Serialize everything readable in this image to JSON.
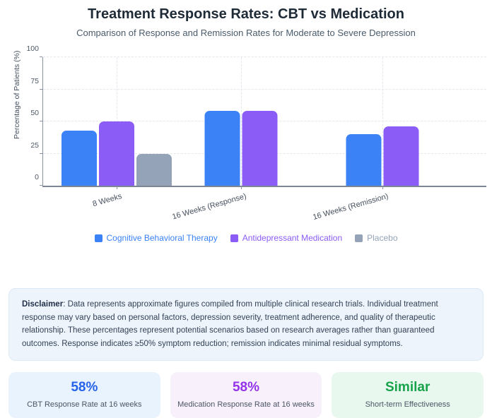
{
  "header": {
    "title": "Treatment Response Rates: CBT vs Medication",
    "subtitle": "Comparison of Response and Remission Rates for Moderate to Severe Depression"
  },
  "chart_data": {
    "type": "bar",
    "title": "Treatment Response Rates: CBT vs Medication",
    "categories": [
      "8 Weeks",
      "16 Weeks (Response)",
      "16 Weeks (Remission)"
    ],
    "series": [
      {
        "name": "Cognitive Behavioral Therapy",
        "color": "#3b82f6",
        "values": [
          43,
          58,
          40
        ]
      },
      {
        "name": "Antidepressant Medication",
        "color": "#8b5cf6",
        "values": [
          50,
          58,
          46
        ]
      },
      {
        "name": "Placebo",
        "color": "#94a3b8",
        "values": [
          25,
          null,
          null
        ]
      }
    ],
    "xlabel": "",
    "ylabel": "Percentage of Patients (%)",
    "yticks": [
      0,
      25,
      50,
      75,
      100
    ],
    "ylim": [
      0,
      100
    ],
    "grid": true,
    "legend_position": "bottom"
  },
  "disclaimer": {
    "label": "Disclaimer",
    "text": ": Data represents approximate figures compiled from multiple clinical research trials. Individual treatment response may vary based on personal factors, depression severity, treatment adherence, and quality of therapeutic relationship. These percentages represent potential scenarios based on research averages rather than guaranteed outcomes. Response indicates ≥50% symptom reduction; remission indicates minimal residual symptoms."
  },
  "stats": [
    {
      "value": "58%",
      "label": "CBT Response Rate at 16 weeks",
      "color": "#2563eb",
      "bg": "#e9f3fe"
    },
    {
      "value": "58%",
      "label": "Medication Response Rate at 16 weeks",
      "color": "#9333ea",
      "bg": "#f8f1fc"
    },
    {
      "value": "Similar",
      "label": "Short-term Effectiveness",
      "color": "#16a34a",
      "bg": "#e9f8ef"
    }
  ]
}
